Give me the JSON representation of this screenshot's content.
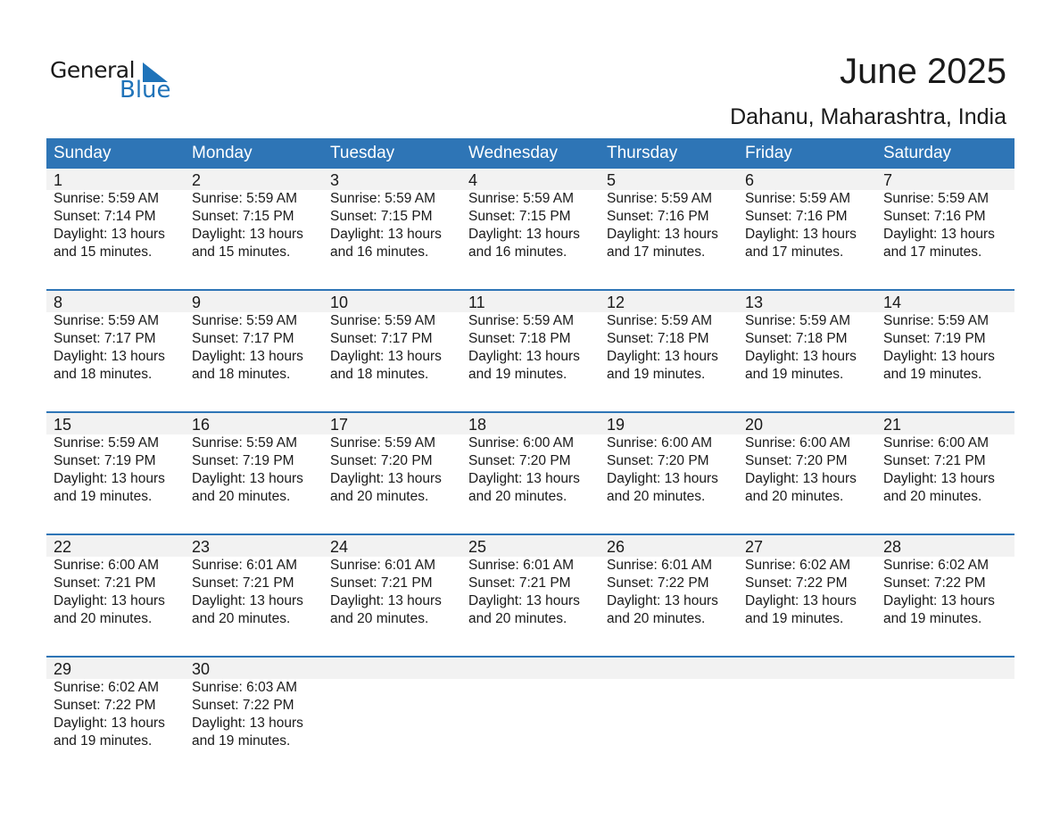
{
  "logo": {
    "word1": "General",
    "word2": "Blue",
    "color": "#1f73b9"
  },
  "title": "June 2025",
  "subtitle": "Dahanu, Maharashtra, India",
  "colors": {
    "header": "#2e75b6",
    "band": "#f2f2f2"
  },
  "weekdays": [
    "Sunday",
    "Monday",
    "Tuesday",
    "Wednesday",
    "Thursday",
    "Friday",
    "Saturday"
  ],
  "weeks": [
    [
      {
        "day": "1",
        "sunrise": "Sunrise: 5:59 AM",
        "sunset": "Sunset: 7:14 PM",
        "daylight": "Daylight: 13 hours",
        "minutes": "and 15 minutes."
      },
      {
        "day": "2",
        "sunrise": "Sunrise: 5:59 AM",
        "sunset": "Sunset: 7:15 PM",
        "daylight": "Daylight: 13 hours",
        "minutes": "and 15 minutes."
      },
      {
        "day": "3",
        "sunrise": "Sunrise: 5:59 AM",
        "sunset": "Sunset: 7:15 PM",
        "daylight": "Daylight: 13 hours",
        "minutes": "and 16 minutes."
      },
      {
        "day": "4",
        "sunrise": "Sunrise: 5:59 AM",
        "sunset": "Sunset: 7:15 PM",
        "daylight": "Daylight: 13 hours",
        "minutes": "and 16 minutes."
      },
      {
        "day": "5",
        "sunrise": "Sunrise: 5:59 AM",
        "sunset": "Sunset: 7:16 PM",
        "daylight": "Daylight: 13 hours",
        "minutes": "and 17 minutes."
      },
      {
        "day": "6",
        "sunrise": "Sunrise: 5:59 AM",
        "sunset": "Sunset: 7:16 PM",
        "daylight": "Daylight: 13 hours",
        "minutes": "and 17 minutes."
      },
      {
        "day": "7",
        "sunrise": "Sunrise: 5:59 AM",
        "sunset": "Sunset: 7:16 PM",
        "daylight": "Daylight: 13 hours",
        "minutes": "and 17 minutes."
      }
    ],
    [
      {
        "day": "8",
        "sunrise": "Sunrise: 5:59 AM",
        "sunset": "Sunset: 7:17 PM",
        "daylight": "Daylight: 13 hours",
        "minutes": "and 18 minutes."
      },
      {
        "day": "9",
        "sunrise": "Sunrise: 5:59 AM",
        "sunset": "Sunset: 7:17 PM",
        "daylight": "Daylight: 13 hours",
        "minutes": "and 18 minutes."
      },
      {
        "day": "10",
        "sunrise": "Sunrise: 5:59 AM",
        "sunset": "Sunset: 7:17 PM",
        "daylight": "Daylight: 13 hours",
        "minutes": "and 18 minutes."
      },
      {
        "day": "11",
        "sunrise": "Sunrise: 5:59 AM",
        "sunset": "Sunset: 7:18 PM",
        "daylight": "Daylight: 13 hours",
        "minutes": "and 19 minutes."
      },
      {
        "day": "12",
        "sunrise": "Sunrise: 5:59 AM",
        "sunset": "Sunset: 7:18 PM",
        "daylight": "Daylight: 13 hours",
        "minutes": "and 19 minutes."
      },
      {
        "day": "13",
        "sunrise": "Sunrise: 5:59 AM",
        "sunset": "Sunset: 7:18 PM",
        "daylight": "Daylight: 13 hours",
        "minutes": "and 19 minutes."
      },
      {
        "day": "14",
        "sunrise": "Sunrise: 5:59 AM",
        "sunset": "Sunset: 7:19 PM",
        "daylight": "Daylight: 13 hours",
        "minutes": "and 19 minutes."
      }
    ],
    [
      {
        "day": "15",
        "sunrise": "Sunrise: 5:59 AM",
        "sunset": "Sunset: 7:19 PM",
        "daylight": "Daylight: 13 hours",
        "minutes": "and 19 minutes."
      },
      {
        "day": "16",
        "sunrise": "Sunrise: 5:59 AM",
        "sunset": "Sunset: 7:19 PM",
        "daylight": "Daylight: 13 hours",
        "minutes": "and 20 minutes."
      },
      {
        "day": "17",
        "sunrise": "Sunrise: 5:59 AM",
        "sunset": "Sunset: 7:20 PM",
        "daylight": "Daylight: 13 hours",
        "minutes": "and 20 minutes."
      },
      {
        "day": "18",
        "sunrise": "Sunrise: 6:00 AM",
        "sunset": "Sunset: 7:20 PM",
        "daylight": "Daylight: 13 hours",
        "minutes": "and 20 minutes."
      },
      {
        "day": "19",
        "sunrise": "Sunrise: 6:00 AM",
        "sunset": "Sunset: 7:20 PM",
        "daylight": "Daylight: 13 hours",
        "minutes": "and 20 minutes."
      },
      {
        "day": "20",
        "sunrise": "Sunrise: 6:00 AM",
        "sunset": "Sunset: 7:20 PM",
        "daylight": "Daylight: 13 hours",
        "minutes": "and 20 minutes."
      },
      {
        "day": "21",
        "sunrise": "Sunrise: 6:00 AM",
        "sunset": "Sunset: 7:21 PM",
        "daylight": "Daylight: 13 hours",
        "minutes": "and 20 minutes."
      }
    ],
    [
      {
        "day": "22",
        "sunrise": "Sunrise: 6:00 AM",
        "sunset": "Sunset: 7:21 PM",
        "daylight": "Daylight: 13 hours",
        "minutes": "and 20 minutes."
      },
      {
        "day": "23",
        "sunrise": "Sunrise: 6:01 AM",
        "sunset": "Sunset: 7:21 PM",
        "daylight": "Daylight: 13 hours",
        "minutes": "and 20 minutes."
      },
      {
        "day": "24",
        "sunrise": "Sunrise: 6:01 AM",
        "sunset": "Sunset: 7:21 PM",
        "daylight": "Daylight: 13 hours",
        "minutes": "and 20 minutes."
      },
      {
        "day": "25",
        "sunrise": "Sunrise: 6:01 AM",
        "sunset": "Sunset: 7:21 PM",
        "daylight": "Daylight: 13 hours",
        "minutes": "and 20 minutes."
      },
      {
        "day": "26",
        "sunrise": "Sunrise: 6:01 AM",
        "sunset": "Sunset: 7:22 PM",
        "daylight": "Daylight: 13 hours",
        "minutes": "and 20 minutes."
      },
      {
        "day": "27",
        "sunrise": "Sunrise: 6:02 AM",
        "sunset": "Sunset: 7:22 PM",
        "daylight": "Daylight: 13 hours",
        "minutes": "and 19 minutes."
      },
      {
        "day": "28",
        "sunrise": "Sunrise: 6:02 AM",
        "sunset": "Sunset: 7:22 PM",
        "daylight": "Daylight: 13 hours",
        "minutes": "and 19 minutes."
      }
    ],
    [
      {
        "day": "29",
        "sunrise": "Sunrise: 6:02 AM",
        "sunset": "Sunset: 7:22 PM",
        "daylight": "Daylight: 13 hours",
        "minutes": "and 19 minutes."
      },
      {
        "day": "30",
        "sunrise": "Sunrise: 6:03 AM",
        "sunset": "Sunset: 7:22 PM",
        "daylight": "Daylight: 13 hours",
        "minutes": "and 19 minutes."
      }
    ]
  ]
}
